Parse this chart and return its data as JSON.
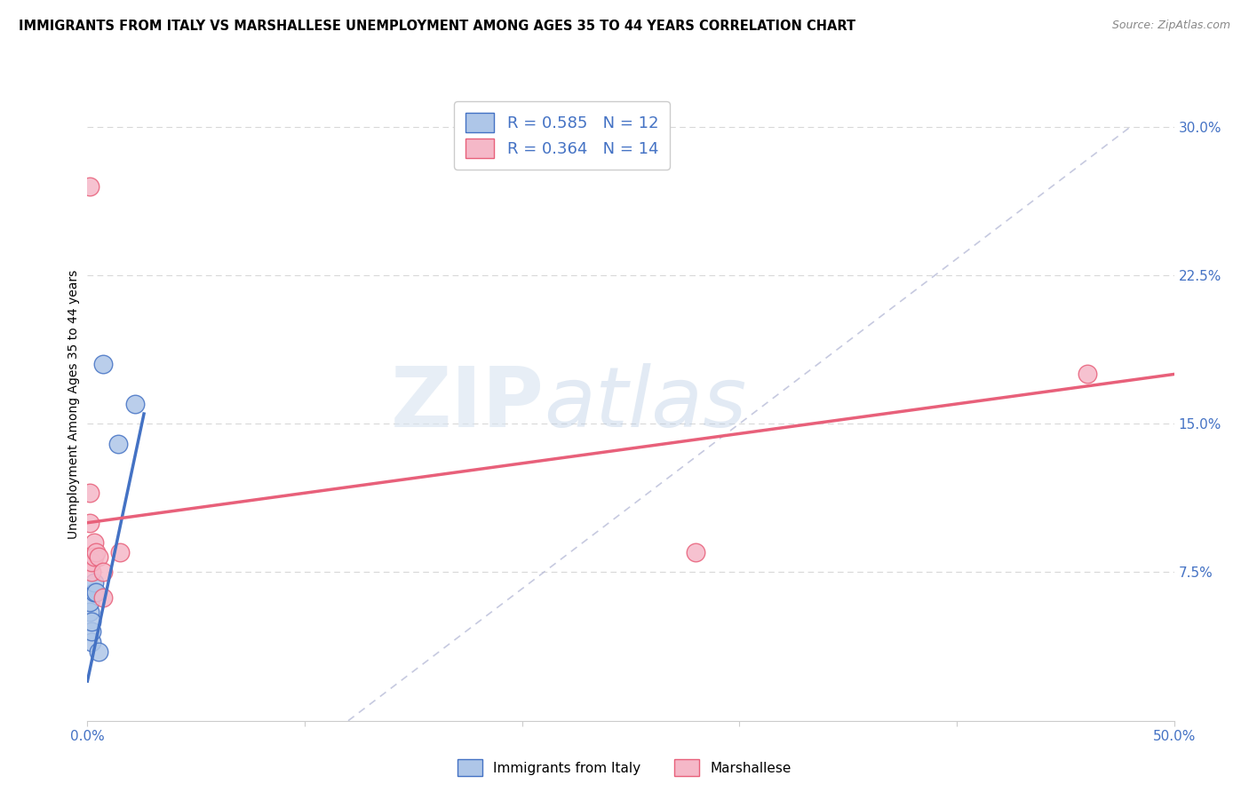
{
  "title": "IMMIGRANTS FROM ITALY VS MARSHALLESE UNEMPLOYMENT AMONG AGES 35 TO 44 YEARS CORRELATION CHART",
  "source": "Source: ZipAtlas.com",
  "ylabel": "Unemployment Among Ages 35 to 44 years",
  "xlim": [
    0.0,
    0.5
  ],
  "ylim": [
    0.0,
    0.32
  ],
  "blue_R": "0.585",
  "blue_N": "12",
  "pink_R": "0.364",
  "pink_N": "14",
  "blue_color": "#aec6e8",
  "pink_color": "#f5b8c8",
  "blue_line_color": "#4472c4",
  "pink_line_color": "#e8607a",
  "watermark_zip": "ZIP",
  "watermark_atlas": "atlas",
  "legend_label_blue": "Immigrants from Italy",
  "legend_label_pink": "Marshallese",
  "blue_x": [
    0.001,
    0.001,
    0.002,
    0.002,
    0.002,
    0.003,
    0.003,
    0.004,
    0.005,
    0.007,
    0.014,
    0.022
  ],
  "blue_y": [
    0.055,
    0.06,
    0.04,
    0.045,
    0.05,
    0.065,
    0.07,
    0.065,
    0.035,
    0.18,
    0.14,
    0.16
  ],
  "pink_x": [
    0.001,
    0.001,
    0.001,
    0.002,
    0.002,
    0.003,
    0.003,
    0.004,
    0.005,
    0.007,
    0.007,
    0.015,
    0.28,
    0.46
  ],
  "pink_y": [
    0.1,
    0.115,
    0.27,
    0.075,
    0.08,
    0.09,
    0.083,
    0.085,
    0.083,
    0.062,
    0.075,
    0.085,
    0.085,
    0.175
  ],
  "blue_line_x0": 0.0,
  "blue_line_y0": 0.02,
  "blue_line_x1": 0.026,
  "blue_line_y1": 0.155,
  "pink_line_x0": 0.0,
  "pink_line_y0": 0.1,
  "pink_line_x1": 0.5,
  "pink_line_y1": 0.175,
  "ref_line_x0": 0.12,
  "ref_line_y0": 0.0,
  "ref_line_x1": 0.48,
  "ref_line_y1": 0.3,
  "grid_color": "#d8d8d8",
  "bg_color": "#ffffff",
  "tick_color": "#4472c4",
  "title_fontsize": 11,
  "axis_label_fontsize": 10
}
